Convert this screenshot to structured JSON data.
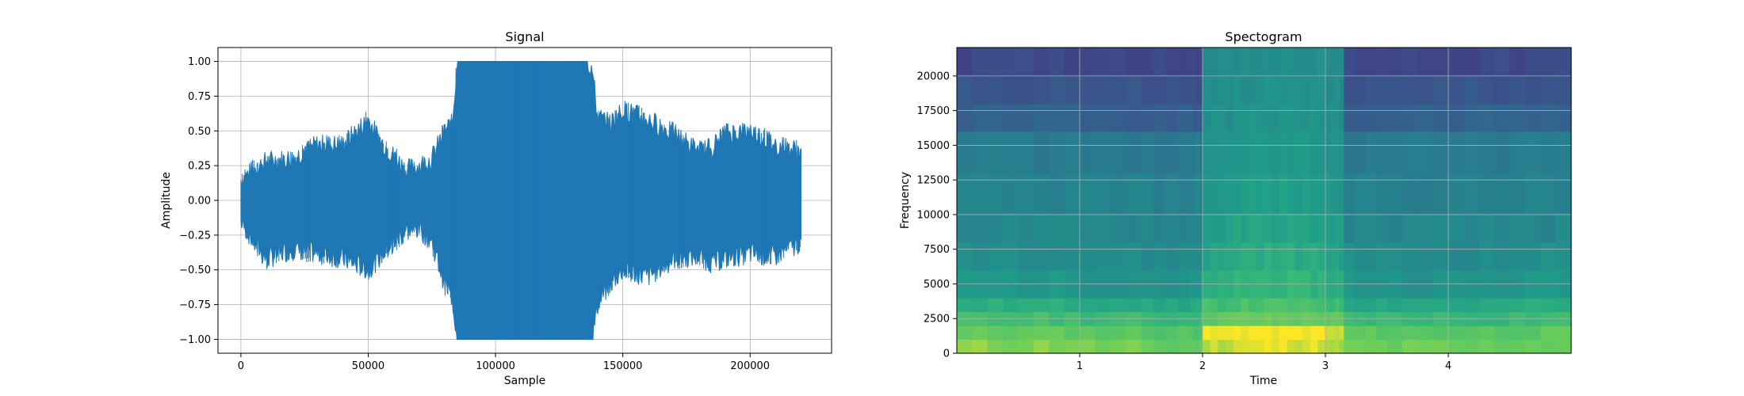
{
  "chart_data": [
    {
      "type": "line",
      "title": "Signal",
      "xlabel": "Sample",
      "ylabel": "Amplitude",
      "xlim": [
        -9000,
        232000
      ],
      "ylim": [
        -1.1,
        1.1
      ],
      "xticks": [
        0,
        50000,
        100000,
        150000,
        200000
      ],
      "xtick_labels": [
        "0",
        "50000",
        "100000",
        "150000",
        "200000"
      ],
      "yticks": [
        -1.0,
        -0.75,
        -0.5,
        -0.25,
        0.0,
        0.25,
        0.5,
        0.75,
        1.0
      ],
      "ytick_labels": [
        "−1.00",
        "−0.75",
        "−0.50",
        "−0.25",
        "0.00",
        "0.25",
        "0.50",
        "0.75",
        "1.00"
      ],
      "grid": true,
      "color": "#1f77b4",
      "series": [
        {
          "x": [
            0,
            5000,
            10000,
            20000,
            30000,
            40000,
            50000,
            55000,
            60000,
            65000,
            70000,
            75000,
            80000,
            83000,
            85000,
            90000,
            100000,
            110000,
            120000,
            130000,
            136000,
            138000,
            140000,
            145000,
            150000,
            160000,
            170000,
            180000,
            185000,
            190000,
            200000,
            210000,
            220000
          ],
          "y_max": [
            0.15,
            0.22,
            0.28,
            0.3,
            0.4,
            0.4,
            0.58,
            0.42,
            0.32,
            0.22,
            0.25,
            0.3,
            0.5,
            0.55,
            1.0,
            1.0,
            1.0,
            1.0,
            1.0,
            1.0,
            1.0,
            0.95,
            0.6,
            0.55,
            0.65,
            0.58,
            0.48,
            0.35,
            0.38,
            0.48,
            0.5,
            0.4,
            0.35
          ],
          "y_min": [
            -0.15,
            -0.3,
            -0.42,
            -0.35,
            -0.38,
            -0.42,
            -0.5,
            -0.4,
            -0.3,
            -0.22,
            -0.2,
            -0.3,
            -0.6,
            -0.7,
            -1.0,
            -1.0,
            -1.0,
            -1.0,
            -1.0,
            -1.0,
            -1.0,
            -1.0,
            -0.75,
            -0.6,
            -0.5,
            -0.55,
            -0.42,
            -0.4,
            -0.45,
            -0.42,
            -0.38,
            -0.4,
            -0.3
          ]
        }
      ]
    },
    {
      "type": "heatmap",
      "title": "Spectogram",
      "xlabel": "Time",
      "ylabel": "Frequency",
      "xlim": [
        0,
        5.0
      ],
      "ylim": [
        0,
        22050
      ],
      "xticks": [
        1,
        2,
        3,
        4
      ],
      "xtick_labels": [
        "1",
        "2",
        "3",
        "4"
      ],
      "yticks": [
        0,
        2500,
        5000,
        7500,
        10000,
        12500,
        15000,
        17500,
        20000
      ],
      "ytick_labels": [
        "0",
        "2500",
        "5000",
        "7500",
        "10000",
        "12500",
        "15000",
        "17500",
        "20000"
      ],
      "grid": true,
      "colormap": "viridis",
      "time_bins": [
        0.0,
        0.5,
        1.0,
        1.5,
        1.9,
        2.0,
        2.25,
        2.5,
        2.75,
        3.0,
        3.15,
        3.5,
        4.0,
        4.5
      ],
      "freq_bins": [
        0,
        1000,
        2000,
        3000,
        4000,
        6000,
        8000,
        10000,
        13000,
        16000,
        18000,
        20000
      ],
      "levels": [
        [
          0.9,
          0.9,
          0.88,
          0.85,
          0.85,
          0.95,
          0.97,
          0.98,
          0.97,
          0.92,
          0.87,
          0.87,
          0.86,
          0.87
        ],
        [
          0.85,
          0.85,
          0.84,
          0.82,
          0.82,
          0.98,
          1.0,
          1.0,
          1.0,
          0.95,
          0.84,
          0.83,
          0.83,
          0.84
        ],
        [
          0.78,
          0.78,
          0.77,
          0.75,
          0.76,
          0.85,
          0.86,
          0.86,
          0.86,
          0.84,
          0.76,
          0.76,
          0.75,
          0.77
        ],
        [
          0.7,
          0.7,
          0.69,
          0.67,
          0.68,
          0.78,
          0.8,
          0.8,
          0.79,
          0.77,
          0.68,
          0.68,
          0.67,
          0.69
        ],
        [
          0.6,
          0.6,
          0.59,
          0.58,
          0.59,
          0.7,
          0.74,
          0.74,
          0.73,
          0.7,
          0.59,
          0.58,
          0.58,
          0.6
        ],
        [
          0.56,
          0.56,
          0.55,
          0.54,
          0.55,
          0.66,
          0.7,
          0.7,
          0.69,
          0.66,
          0.55,
          0.54,
          0.54,
          0.56
        ],
        [
          0.53,
          0.53,
          0.52,
          0.52,
          0.52,
          0.63,
          0.66,
          0.66,
          0.65,
          0.63,
          0.52,
          0.52,
          0.52,
          0.53
        ],
        [
          0.5,
          0.5,
          0.5,
          0.49,
          0.5,
          0.6,
          0.63,
          0.63,
          0.62,
          0.6,
          0.5,
          0.49,
          0.49,
          0.5
        ],
        [
          0.47,
          0.47,
          0.46,
          0.46,
          0.47,
          0.58,
          0.6,
          0.6,
          0.6,
          0.58,
          0.46,
          0.46,
          0.46,
          0.47
        ],
        [
          0.35,
          0.36,
          0.34,
          0.34,
          0.33,
          0.56,
          0.58,
          0.58,
          0.58,
          0.56,
          0.34,
          0.35,
          0.35,
          0.36
        ],
        [
          0.3,
          0.31,
          0.3,
          0.29,
          0.28,
          0.55,
          0.57,
          0.57,
          0.57,
          0.55,
          0.29,
          0.31,
          0.3,
          0.31
        ],
        [
          0.25,
          0.25,
          0.25,
          0.25,
          0.25,
          0.54,
          0.56,
          0.56,
          0.56,
          0.54,
          0.25,
          0.25,
          0.25,
          0.25
        ]
      ]
    }
  ]
}
